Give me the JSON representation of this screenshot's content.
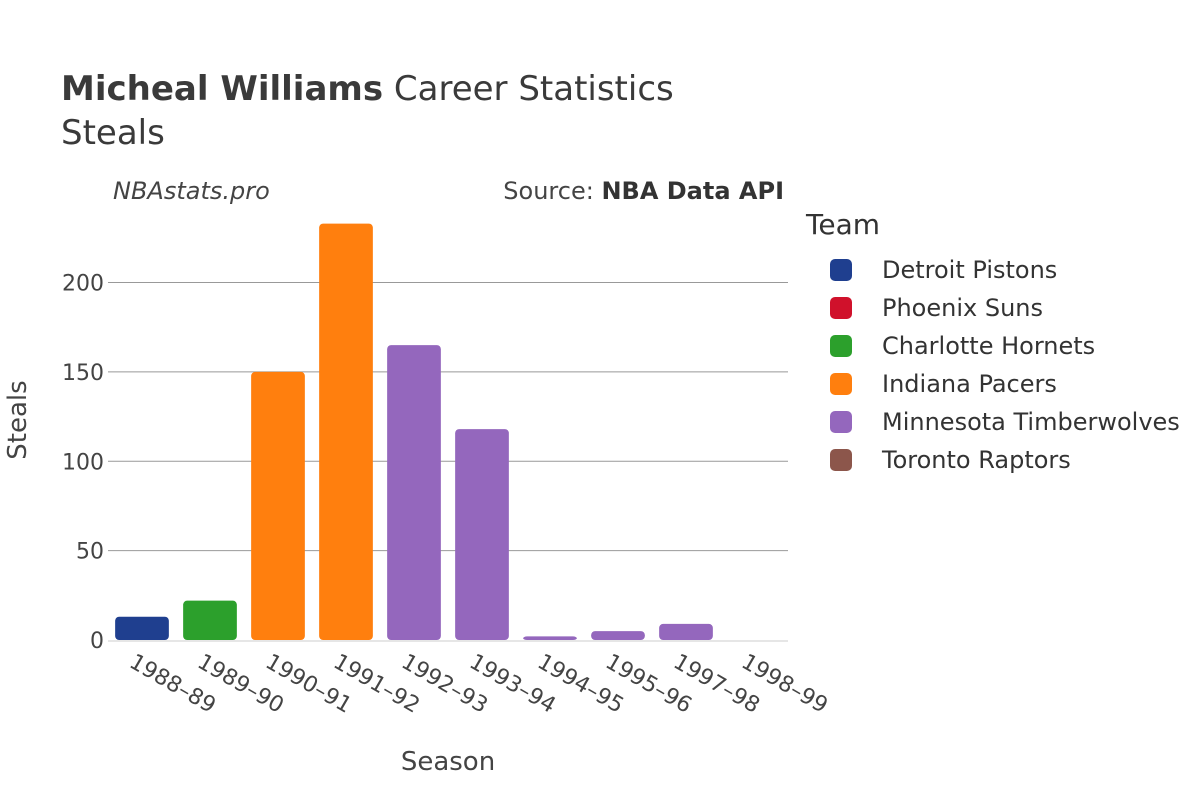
{
  "header": {
    "player_name": "Micheal Williams",
    "title_suffix": "Career Statistics",
    "subtitle": "Steals",
    "credit": "NBAstats.pro",
    "source_prefix": "Source: ",
    "source_name": "NBA Data API"
  },
  "legend": {
    "title": "Team",
    "items": [
      {
        "label": "Detroit Pistons",
        "color": "#1f3f8f"
      },
      {
        "label": "Phoenix Suns",
        "color": "#d0112b"
      },
      {
        "label": "Charlotte Hornets",
        "color": "#2ca02c"
      },
      {
        "label": "Indiana Pacers",
        "color": "#ff7f0e"
      },
      {
        "label": "Minnesota Timberwolves",
        "color": "#9467bd"
      },
      {
        "label": "Toronto Raptors",
        "color": "#8c564b"
      }
    ]
  },
  "chart_data": {
    "type": "bar",
    "title": "Micheal Williams Career Statistics",
    "subtitle": "Steals",
    "xlabel": "Season",
    "ylabel": "Steals",
    "ylim": [
      0,
      235
    ],
    "yticks": [
      0,
      50,
      100,
      150,
      200
    ],
    "grid": true,
    "legend_position": "right",
    "categories": [
      "1988–89",
      "1989–90",
      "1990–91",
      "1991–92",
      "1992–93",
      "1993–94",
      "1994–95",
      "1995–96",
      "1997–98",
      "1998–99"
    ],
    "values": [
      13,
      22,
      150,
      233,
      165,
      118,
      2,
      5,
      9,
      0
    ],
    "teams": [
      "Detroit Pistons",
      "Charlotte Hornets",
      "Indiana Pacers",
      "Indiana Pacers",
      "Minnesota Timberwolves",
      "Minnesota Timberwolves",
      "Minnesota Timberwolves",
      "Minnesota Timberwolves",
      "Minnesota Timberwolves",
      "Toronto Raptors"
    ]
  }
}
